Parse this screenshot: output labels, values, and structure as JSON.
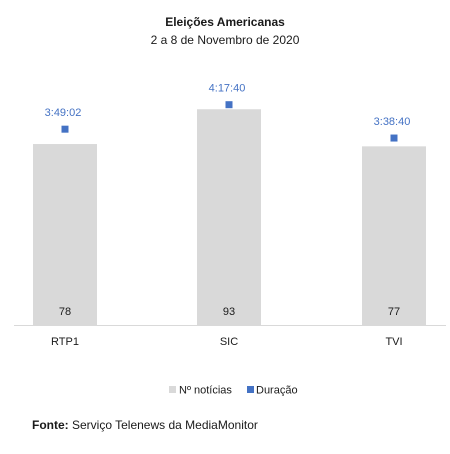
{
  "chart_data": {
    "type": "bar",
    "title": "Eleições Americanas",
    "subtitle": "2 a 8 de Novembro de 2020",
    "categories": [
      "RTP1",
      "SIC",
      "TVI"
    ],
    "series": [
      {
        "name": "Nº notícias",
        "type": "bar",
        "values": [
          78,
          93,
          77
        ],
        "color": "#d9d9d9"
      },
      {
        "name": "Duração",
        "type": "scatter",
        "values": [
          "3:49:02",
          "4:17:40",
          "3:38:40"
        ],
        "seconds": [
          13742,
          15460,
          13120
        ],
        "color": "#4472c4"
      }
    ],
    "ylim": [
      0,
      100
    ],
    "grid": false,
    "legend": "bottom"
  },
  "source": {
    "label": "Fonte:",
    "text": " Serviço Telenews da MediaMonitor"
  }
}
